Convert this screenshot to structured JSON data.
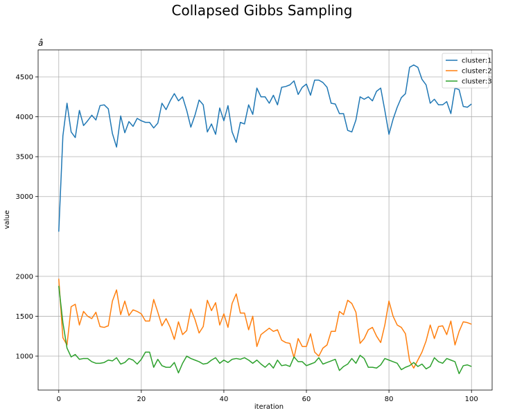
{
  "chart_data": {
    "type": "line",
    "title": "Collapsed Gibbs Sampling",
    "subtitle": "â",
    "xlabel": "iteration",
    "ylabel": "value",
    "xlim": [
      -5,
      105
    ],
    "ylim": [
      2500,
      4800
    ],
    "xlim_lower": [
      -5,
      105
    ],
    "ylim_lower": [
      600,
      2100
    ],
    "xticks": [
      0,
      20,
      40,
      60,
      80,
      100
    ],
    "yticks_upper": [
      3000,
      3500,
      4000,
      4500
    ],
    "yticks_lower": [
      1000,
      1500,
      2000
    ],
    "grid": true,
    "legend_position": "top-right",
    "series": [
      {
        "name": "cluster:1",
        "color": "#1f77b4",
        "values": [
          2560,
          3760,
          4170,
          3810,
          3740,
          4080,
          3890,
          3950,
          4020,
          3960,
          4140,
          4150,
          4100,
          3790,
          3620,
          4010,
          3800,
          3940,
          3880,
          3980,
          3950,
          3930,
          3930,
          3860,
          3920,
          4170,
          4090,
          4200,
          4290,
          4200,
          4250,
          4080,
          3870,
          4020,
          4210,
          4150,
          3810,
          3910,
          3780,
          4110,
          3950,
          4140,
          3810,
          3680,
          3930,
          3910,
          4150,
          4030,
          4360,
          4250,
          4250,
          4170,
          4270,
          4150,
          4370,
          4380,
          4400,
          4450,
          4280,
          4370,
          4410,
          4270,
          4460,
          4460,
          4430,
          4370,
          4170,
          4160,
          4040,
          4040,
          3830,
          3810,
          3960,
          4250,
          4220,
          4250,
          4200,
          4320,
          4360,
          4080,
          3780,
          3970,
          4120,
          4240,
          4290,
          4620,
          4650,
          4620,
          4470,
          4400,
          4170,
          4220,
          4150,
          4150,
          4190,
          4040,
          4360,
          4340,
          4130,
          4120,
          4160
        ]
      },
      {
        "name": "cluster:2",
        "color": "#ff7f0e",
        "values": [
          1970,
          1230,
          1140,
          1620,
          1650,
          1390,
          1560,
          1500,
          1470,
          1550,
          1370,
          1360,
          1380,
          1690,
          1830,
          1520,
          1690,
          1510,
          1580,
          1560,
          1530,
          1440,
          1440,
          1710,
          1550,
          1380,
          1470,
          1360,
          1210,
          1430,
          1270,
          1320,
          1590,
          1460,
          1290,
          1370,
          1700,
          1570,
          1670,
          1390,
          1530,
          1360,
          1660,
          1780,
          1540,
          1540,
          1330,
          1500,
          1120,
          1270,
          1310,
          1350,
          1310,
          1330,
          1200,
          1170,
          1160,
          980,
          1220,
          1120,
          1120,
          1280,
          1050,
          1000,
          1100,
          1140,
          1310,
          1310,
          1560,
          1520,
          1700,
          1660,
          1550,
          1160,
          1220,
          1330,
          1360,
          1250,
          1170,
          1390,
          1690,
          1500,
          1390,
          1360,
          1280,
          940,
          850,
          950,
          1050,
          1190,
          1390,
          1220,
          1370,
          1380,
          1270,
          1440,
          1140,
          1310,
          1430,
          1420,
          1400
        ]
      },
      {
        "name": "cluster:3",
        "color": "#2ca02c",
        "values": [
          1880,
          1420,
          1100,
          990,
          1020,
          960,
          970,
          970,
          930,
          910,
          910,
          920,
          950,
          940,
          980,
          900,
          920,
          970,
          950,
          900,
          960,
          1050,
          1050,
          860,
          960,
          880,
          860,
          860,
          920,
          790,
          910,
          1000,
          970,
          950,
          930,
          900,
          910,
          950,
          980,
          910,
          950,
          920,
          960,
          970,
          960,
          980,
          950,
          910,
          950,
          900,
          860,
          910,
          850,
          950,
          880,
          890,
          870,
          990,
          930,
          930,
          880,
          900,
          920,
          980,
          900,
          920,
          940,
          960,
          820,
          870,
          900,
          970,
          910,
          1010,
          970,
          860,
          860,
          850,
          890,
          970,
          950,
          930,
          910,
          830,
          860,
          880,
          920,
          870,
          900,
          840,
          870,
          980,
          930,
          910,
          970,
          950,
          930,
          780,
          880,
          890,
          870
        ]
      }
    ]
  }
}
